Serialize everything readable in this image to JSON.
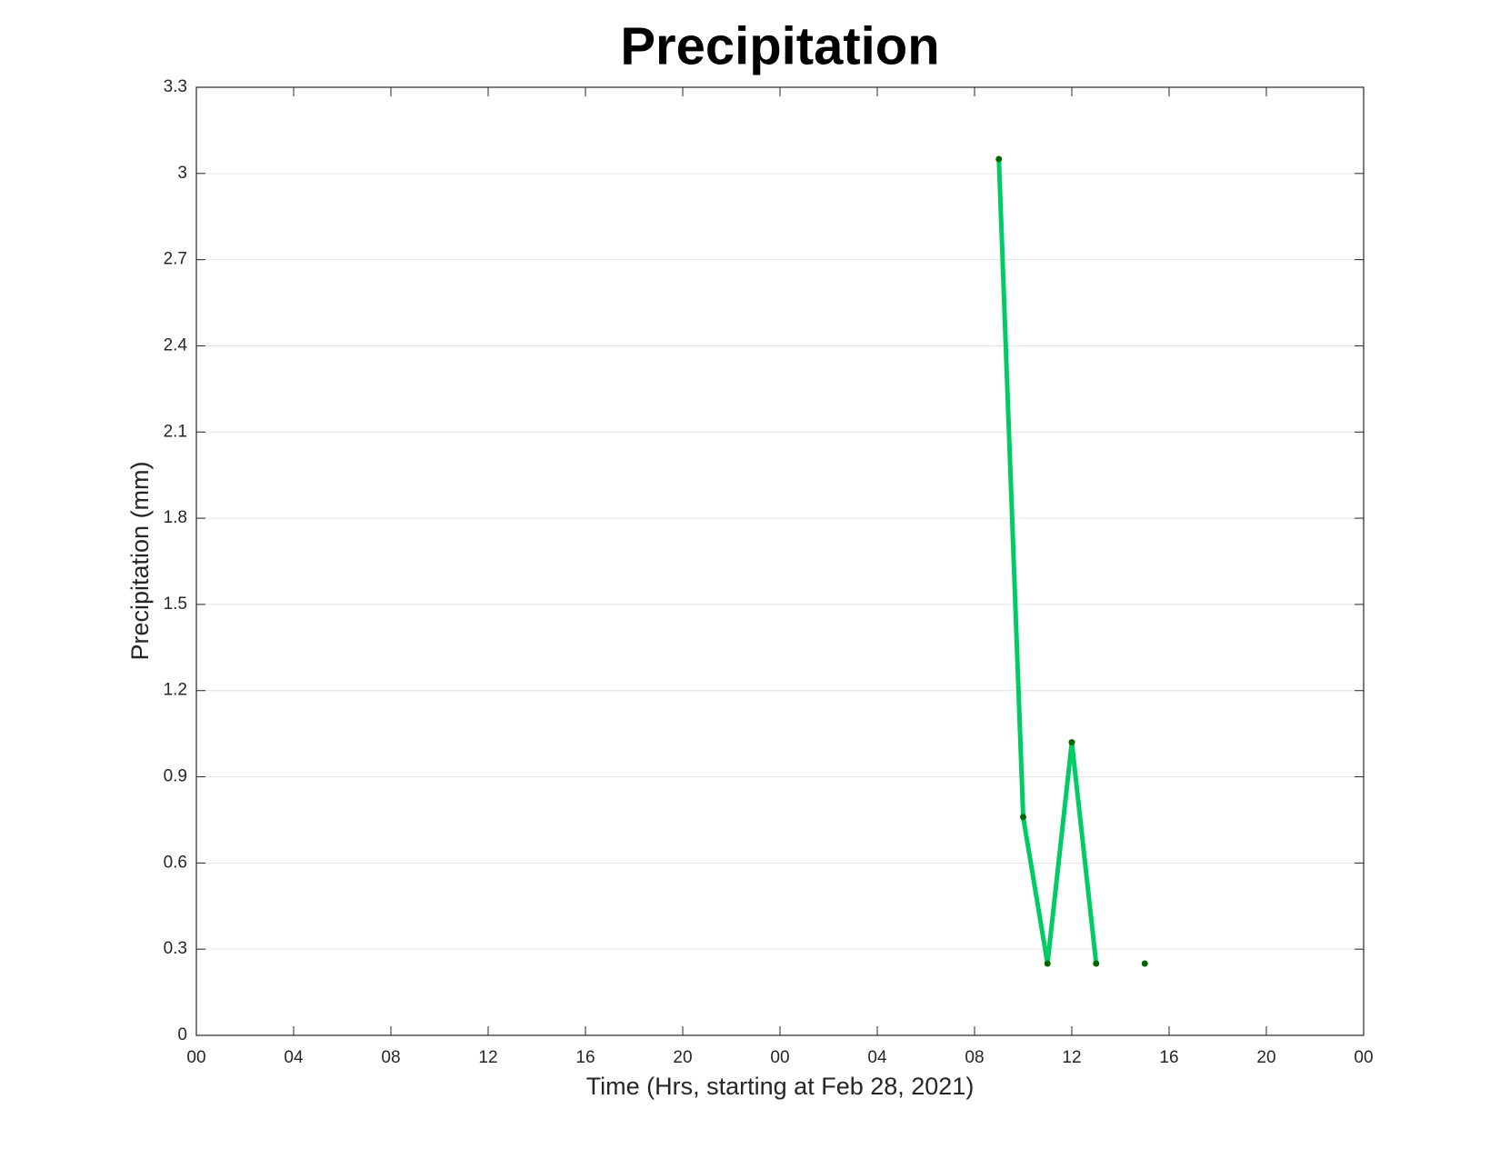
{
  "chart_data": {
    "type": "line",
    "title": "Precipitation",
    "xlabel": "Time (Hrs, starting at Feb 28, 2021)",
    "ylabel": "Precipitation (mm)",
    "x": [
      33,
      34,
      35,
      36,
      37,
      38,
      39
    ],
    "series": [
      {
        "name": "Precipitation",
        "color": "#00cc66",
        "marker_color": "#006600",
        "values": [
          3.05,
          0.76,
          0.25,
          1.02,
          0.25,
          null,
          0.25
        ]
      }
    ],
    "xlim": [
      0,
      48
    ],
    "xticks": [
      {
        "value": 0,
        "label": "00"
      },
      {
        "value": 4,
        "label": "04"
      },
      {
        "value": 8,
        "label": "08"
      },
      {
        "value": 12,
        "label": "12"
      },
      {
        "value": 16,
        "label": "16"
      },
      {
        "value": 20,
        "label": "20"
      },
      {
        "value": 24,
        "label": "00"
      },
      {
        "value": 28,
        "label": "04"
      },
      {
        "value": 32,
        "label": "08"
      },
      {
        "value": 36,
        "label": "12"
      },
      {
        "value": 40,
        "label": "16"
      },
      {
        "value": 44,
        "label": "20"
      },
      {
        "value": 48,
        "label": "00"
      }
    ],
    "ylim": [
      0,
      3.3
    ],
    "yticks": [
      0,
      0.3,
      0.6,
      0.9,
      1.2,
      1.5,
      1.8,
      2.1,
      2.4,
      2.7,
      3,
      3.3
    ],
    "grid": true
  }
}
